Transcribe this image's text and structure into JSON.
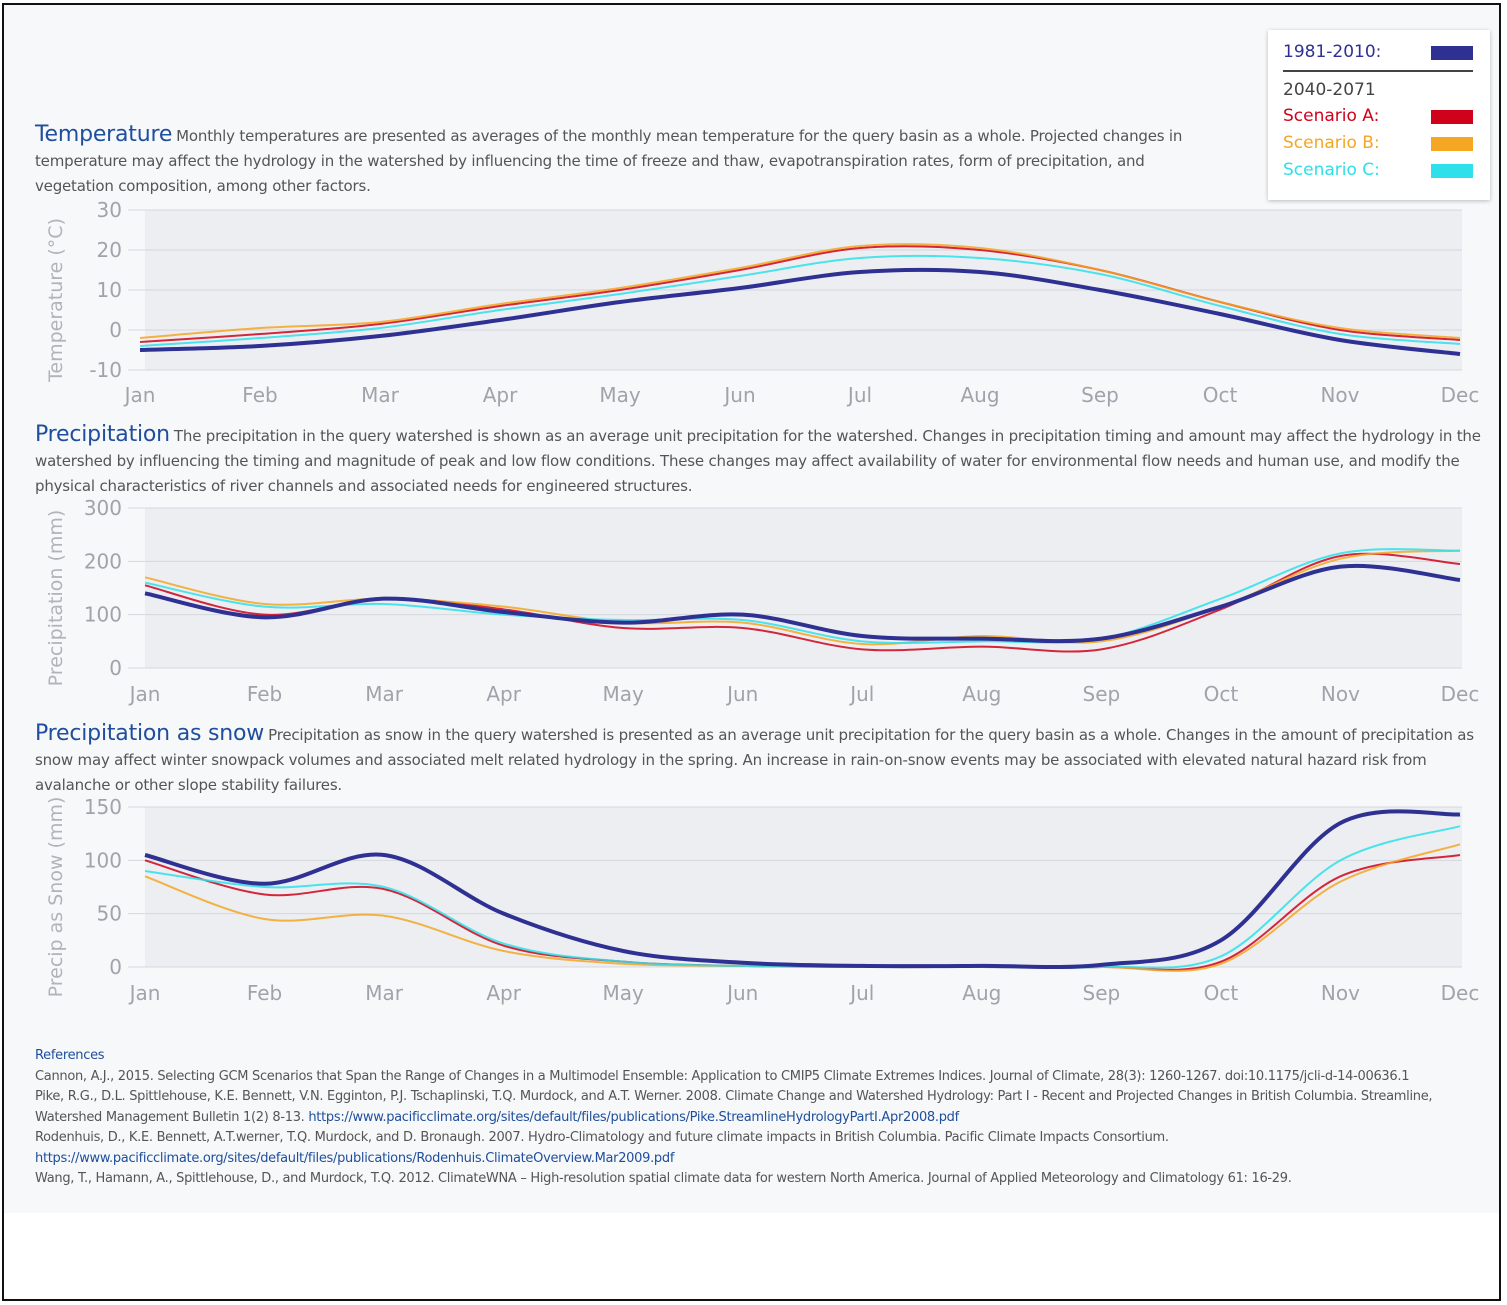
{
  "chart_data": [
    {
      "type": "line",
      "title": "Temperature",
      "description": "Monthly temperatures are presented as averages of the monthly mean temperature for the query basin as a whole. Projected changes in temperature may affect the hydrology in the watershed by influencing the time of freeze and thaw, evapotranspiration rates, form of precipitation, and vegetation composition, among other factors.",
      "y_label": "Temperature (°C)",
      "categories": [
        "Jan",
        "Feb",
        "Mar",
        "Apr",
        "May",
        "Jun",
        "Jul",
        "Aug",
        "Sep",
        "Oct",
        "Nov",
        "Dec"
      ],
      "ylim": [
        -10,
        30
      ],
      "yticks": [
        -10,
        0,
        10,
        20,
        30
      ],
      "grid": true,
      "series": [
        {
          "name": "1981-2010:",
          "color": "#2e3192",
          "values": [
            -5,
            -4,
            -1.5,
            2.5,
            7,
            10.5,
            14.5,
            14.5,
            10,
            4,
            -2.5,
            -6
          ]
        },
        {
          "name": "Scenario A:",
          "color": "#d0021b",
          "values": [
            -3,
            -1,
            1.5,
            6,
            10,
            15,
            20.5,
            20,
            15,
            7,
            0,
            -2.5
          ]
        },
        {
          "name": "Scenario B:",
          "color": "#f5a623",
          "values": [
            -2,
            0.5,
            2,
            6.5,
            10.5,
            15.5,
            21,
            20.5,
            15,
            7,
            0.5,
            -2
          ]
        },
        {
          "name": "Scenario C:",
          "color": "#2ee0ea",
          "values": [
            -4,
            -2,
            0.5,
            5,
            9,
            13.5,
            18,
            18,
            14,
            6,
            -1,
            -3.5
          ]
        }
      ]
    },
    {
      "type": "line",
      "title": "Precipitation",
      "description": "The precipitation in the query watershed is shown as an average unit precipitation for the watershed. Changes in precipitation timing and amount may affect the hydrology in the watershed by influencing the timing and magnitude of peak and low flow conditions. These changes may affect availability of water for environmental flow needs and human use, and modify the physical characteristics of river channels and associated needs for engineered structures.",
      "y_label": "Precipitation (mm)",
      "categories": [
        "Jan",
        "Feb",
        "Mar",
        "Apr",
        "May",
        "Jun",
        "Jul",
        "Aug",
        "Sep",
        "Oct",
        "Nov",
        "Dec"
      ],
      "ylim": [
        0,
        300
      ],
      "yticks": [
        0,
        100,
        200,
        300
      ],
      "grid": true,
      "series": [
        {
          "name": "1981-2010:",
          "color": "#2e3192",
          "values": [
            140,
            95,
            130,
            105,
            85,
            100,
            60,
            55,
            55,
            115,
            190,
            165
          ]
        },
        {
          "name": "Scenario A:",
          "color": "#d0021b",
          "values": [
            155,
            100,
            130,
            110,
            75,
            75,
            35,
            40,
            35,
            110,
            210,
            195
          ]
        },
        {
          "name": "Scenario B:",
          "color": "#f5a623",
          "values": [
            170,
            120,
            130,
            115,
            85,
            85,
            45,
            60,
            50,
            115,
            205,
            220
          ]
        },
        {
          "name": "Scenario C:",
          "color": "#2ee0ea",
          "values": [
            160,
            115,
            120,
            100,
            90,
            90,
            50,
            50,
            55,
            130,
            215,
            220
          ]
        }
      ]
    },
    {
      "type": "line",
      "title": "Precipitation as snow",
      "description": "Precipitation as snow in the query watershed is presented as an average unit precipitation for the query basin as a whole. Changes in the amount of precipitation as snow may affect winter snowpack volumes and associated melt related hydrology in the spring. An increase in rain-on-snow events may be associated with elevated natural hazard risk from avalanche or other slope stability failures.",
      "y_label": "Precip as Snow (mm)",
      "categories": [
        "Jan",
        "Feb",
        "Mar",
        "Apr",
        "May",
        "Jun",
        "Jul",
        "Aug",
        "Sep",
        "Oct",
        "Nov",
        "Dec"
      ],
      "ylim": [
        0,
        150
      ],
      "yticks": [
        0,
        50,
        100,
        150
      ],
      "grid": true,
      "series": [
        {
          "name": "1981-2010:",
          "color": "#2e3192",
          "values": [
            105,
            78,
            105,
            50,
            15,
            4,
            1,
            1,
            2,
            25,
            135,
            143
          ]
        },
        {
          "name": "Scenario A:",
          "color": "#d0021b",
          "values": [
            100,
            68,
            73,
            20,
            5,
            1,
            0,
            0,
            0,
            5,
            85,
            105
          ]
        },
        {
          "name": "Scenario B:",
          "color": "#f5a623",
          "values": [
            85,
            45,
            48,
            15,
            3,
            1,
            0,
            0,
            0,
            3,
            80,
            115
          ]
        },
        {
          "name": "Scenario C:",
          "color": "#2ee0ea",
          "values": [
            90,
            75,
            75,
            22,
            5,
            1,
            0,
            0,
            0,
            10,
            100,
            132
          ]
        }
      ]
    }
  ],
  "legend": {
    "group_label": "2040-2071"
  },
  "references": {
    "title": "References",
    "items": [
      {
        "text": "Cannon, A.J., 2015. Selecting GCM Scenarios that Span the Range of Changes in a Multimodel Ensemble: Application to CMIP5 Climate Extremes Indices. Journal of Climate, 28(3): 1260-1267. doi:10.1175/jcli-d-14-00636.1"
      },
      {
        "text": "Pike, R.G., D.L. Spittlehouse, K.E. Bennett, V.N. Egginton, P.J. Tschaplinski, T.Q. Murdock, and A.T. Werner. 2008. Climate Change and Watershed Hydrology: Part I - Recent and Projected Changes in British Columbia. Streamline, Watershed Management Bulletin 1(2) 8-13.",
        "url": "https://www.pacificclimate.org/sites/default/files/publications/Pike.StreamlineHydrologyPartI.Apr2008.pdf"
      },
      {
        "text": "Rodenhuis, D., K.E. Bennett, A.T.werner, T.Q. Murdock, and D. Bronaugh. 2007. Hydro-Climatology and future climate impacts in British Columbia. Pacific Climate Impacts Consortium.",
        "url": "https://www.pacificclimate.org/sites/default/files/publications/Rodenhuis.ClimateOverview.Mar2009.pdf"
      },
      {
        "text": "Wang, T., Hamann, A., Spittlehouse, D., and Murdock, T.Q. 2012. ClimateWNA – High-resolution spatial climate data for western North America. Journal of Applied Meteorology and Climatology 61: 16-29."
      }
    ]
  }
}
